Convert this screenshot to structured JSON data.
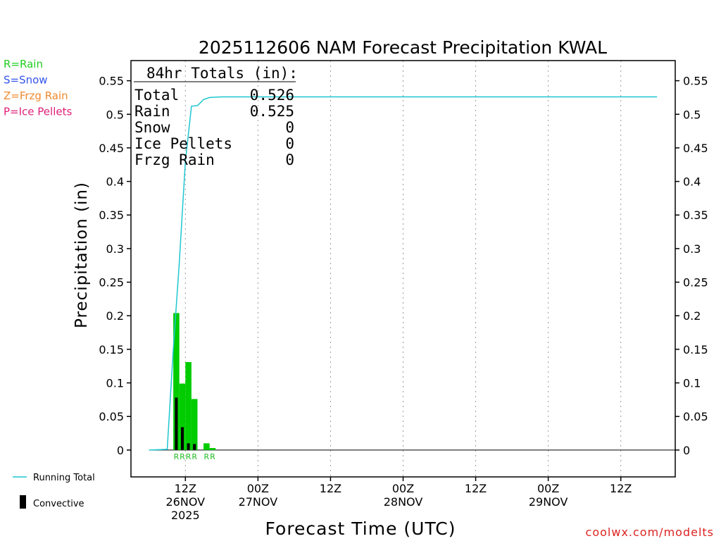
{
  "chart_data": {
    "type": "bar",
    "title": "2025112606 NAM Forecast Precipitation KWAL",
    "ylabel": "Precipitation (in)",
    "xlabel": "Forecast Time (UTC)",
    "ylim": [
      -0.04,
      0.58
    ],
    "xlim_hours": [
      -3,
      87
    ],
    "y_ticks": [
      0,
      0.05,
      0.1,
      0.15,
      0.2,
      0.25,
      0.3,
      0.35,
      0.4,
      0.45,
      0.5,
      0.55
    ],
    "y_tick_labels": [
      "0",
      "0.05",
      "0.1",
      "0.15",
      "0.2",
      "0.25",
      "0.3",
      "0.35",
      "0.4",
      "0.45",
      "0.5",
      "0.55"
    ],
    "x_ticks": [
      {
        "hour": 6,
        "lines": [
          "12Z",
          "26NOV",
          "2025"
        ]
      },
      {
        "hour": 18,
        "lines": [
          "00Z",
          "27NOV"
        ]
      },
      {
        "hour": 30,
        "lines": [
          "12Z"
        ]
      },
      {
        "hour": 42,
        "lines": [
          "00Z",
          "28NOV"
        ]
      },
      {
        "hour": 54,
        "lines": [
          "12Z"
        ]
      },
      {
        "hour": 66,
        "lines": [
          "00Z",
          "29NOV"
        ]
      },
      {
        "hour": 78,
        "lines": [
          "12Z"
        ]
      }
    ],
    "bar_width_hours": 1,
    "rain_bars": [
      {
        "start": 4,
        "value": 0.204
      },
      {
        "start": 5,
        "value": 0.099
      },
      {
        "start": 6,
        "value": 0.131
      },
      {
        "start": 7,
        "value": 0.076
      },
      {
        "start": 9,
        "value": 0.01
      },
      {
        "start": 10,
        "value": 0.003
      }
    ],
    "convective_bars": [
      {
        "start": 4,
        "value": 0.078
      },
      {
        "start": 5,
        "value": 0.034
      },
      {
        "start": 6,
        "value": 0.01
      },
      {
        "start": 7,
        "value": 0.009
      }
    ],
    "ptype_labels": [
      {
        "hour": 4.5,
        "text": "R"
      },
      {
        "hour": 5.5,
        "text": "R"
      },
      {
        "hour": 6.5,
        "text": "R"
      },
      {
        "hour": 7.5,
        "text": "R"
      },
      {
        "hour": 9.5,
        "text": "R"
      },
      {
        "hour": 10.5,
        "text": "R"
      }
    ],
    "running_total": {
      "hours": [
        0,
        3,
        4,
        5,
        6,
        7,
        8,
        9,
        10,
        12,
        15,
        84
      ],
      "values": [
        0,
        0.001,
        0.15,
        0.28,
        0.43,
        0.512,
        0.513,
        0.522,
        0.525,
        0.526,
        0.526,
        0.526
      ]
    },
    "zero_line": true,
    "grid": "vertical dotted at x ticks",
    "totals": {
      "header": "84hr Totals (in):",
      "rows": [
        {
          "label": "Total",
          "value": "0.526"
        },
        {
          "label": "Rain",
          "value": "0.525"
        },
        {
          "label": "Snow",
          "value": "0"
        },
        {
          "label": "Ice Pellets",
          "value": "0"
        },
        {
          "label": "Frzg Rain",
          "value": "0"
        }
      ]
    },
    "type_legend": [
      {
        "text": "R=Rain",
        "color": "#22cc22"
      },
      {
        "text": "S=Snow",
        "color": "#3355ee"
      },
      {
        "text": "Z=Frzg Rain",
        "color": "#f08a30"
      },
      {
        "text": "P=Ice Pellets",
        "color": "#e0207a"
      }
    ],
    "series_legend": [
      {
        "text": "Running Total",
        "color": "#1fc6d0"
      },
      {
        "text": "Convective",
        "color": "#000000"
      }
    ],
    "colors": {
      "rain": "#00cc00",
      "convective": "#000000",
      "running_total": "#1fc6d0",
      "ptype_label": "#22bb22"
    }
  },
  "credit": "coolwx.com/modelts"
}
